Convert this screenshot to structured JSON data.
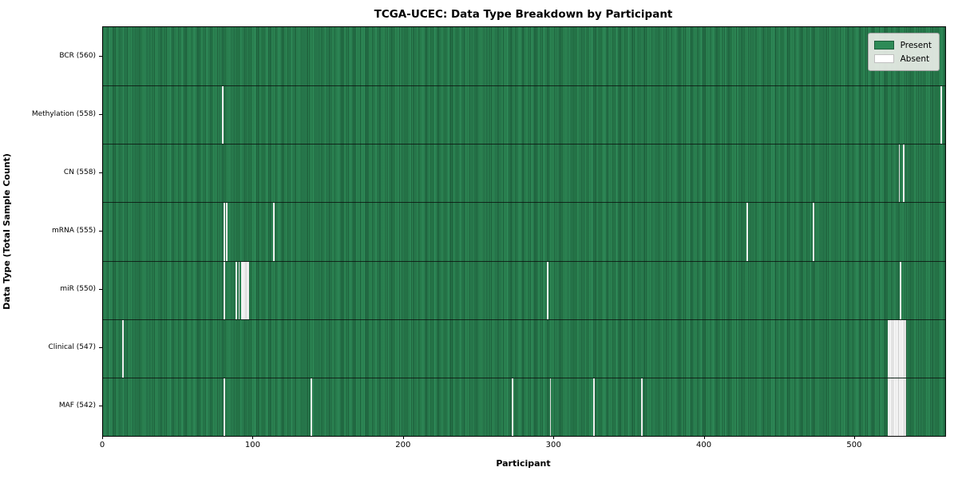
{
  "chart_data": {
    "type": "heatmap",
    "title": "TCGA-UCEC: Data Type Breakdown by Participant",
    "xlabel": "Participant",
    "ylabel": "Data Type (Total Sample Count)",
    "xlim": [
      0,
      560
    ],
    "n_participants": 560,
    "x_ticks": [
      0,
      100,
      200,
      300,
      400,
      500
    ],
    "grid": false,
    "legend_position": "upper right",
    "legend": [
      {
        "label": "Present",
        "color": "#2e8b57"
      },
      {
        "label": "Absent",
        "color": "#ffffff"
      }
    ],
    "rows": [
      {
        "label": "BCR (560)",
        "count": 560,
        "absent_ranges": []
      },
      {
        "label": "Methylation (558)",
        "count": 558,
        "absent_ranges": [
          [
            79,
            79
          ],
          [
            557,
            557
          ]
        ]
      },
      {
        "label": "CN (558)",
        "count": 558,
        "absent_ranges": [
          [
            529,
            529
          ],
          [
            532,
            532
          ]
        ]
      },
      {
        "label": "mRNA (555)",
        "count": 555,
        "absent_ranges": [
          [
            80,
            80
          ],
          [
            82,
            82
          ],
          [
            113,
            113
          ],
          [
            428,
            428
          ],
          [
            472,
            472
          ]
        ]
      },
      {
        "label": "miR (550)",
        "count": 550,
        "absent_ranges": [
          [
            80,
            80
          ],
          [
            88,
            88
          ],
          [
            90,
            90
          ],
          [
            92,
            96
          ],
          [
            295,
            295
          ],
          [
            530,
            530
          ]
        ]
      },
      {
        "label": "Clinical (547)",
        "count": 547,
        "absent_ranges": [
          [
            13,
            13
          ],
          [
            522,
            533
          ]
        ]
      },
      {
        "label": "MAF (542)",
        "count": 542,
        "absent_ranges": [
          [
            80,
            80
          ],
          [
            138,
            138
          ],
          [
            272,
            272
          ],
          [
            297,
            297
          ],
          [
            326,
            326
          ],
          [
            358,
            358
          ],
          [
            522,
            533
          ]
        ]
      }
    ],
    "colors": {
      "present": "#2e8b57",
      "absent": "#ffffff",
      "row_separator": "#1a1a1a",
      "axis": "#000000",
      "legend_bg": "#e9ede7",
      "legend_border": "#a3a3a3"
    }
  }
}
